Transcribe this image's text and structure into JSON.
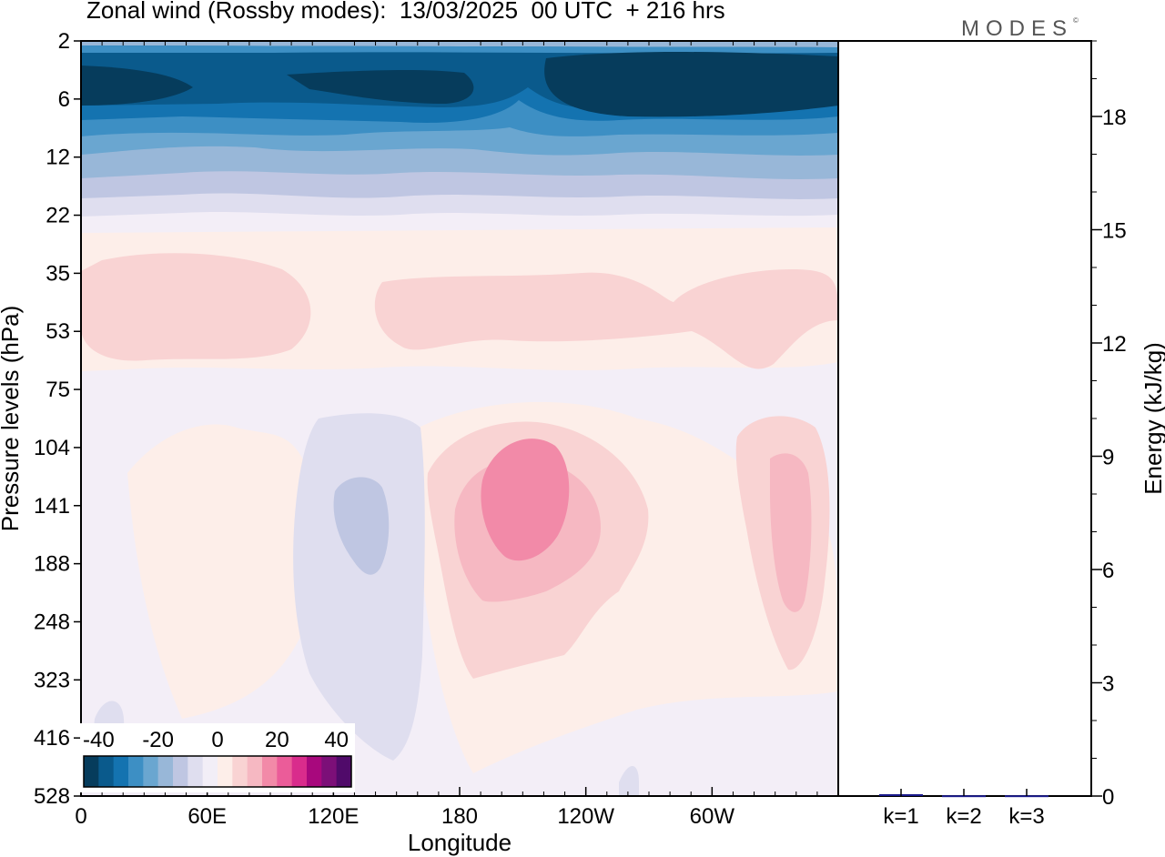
{
  "header": {
    "title": "Zonal wind (Rossby modes):  13/03/2025  00 UTC  + 216 hrs",
    "logo": "MODES",
    "logo_mark": "©"
  },
  "colors": {
    "frame": "#000000",
    "bar_fill": "#1a1a8c",
    "negative_ramp": [
      "#063c5c",
      "#0a5a8c",
      "#1473b0",
      "#3d8fc4",
      "#6aa6d0",
      "#98b7d8",
      "#bfc6e2",
      "#dfdeef",
      "#f2eef7"
    ],
    "positive_ramp": [
      "#fdeee9",
      "#f9d3d3",
      "#f6b8c2",
      "#f28aa8",
      "#eb5c99",
      "#d92c8c",
      "#a8087d",
      "#7c0f78",
      "#500a6a"
    ]
  },
  "chart_data": [
    {
      "type": "heatmap",
      "title": "Zonal wind (Rossby modes):  13/03/2025  00 UTC  + 216 hrs",
      "xlabel": "Longitude",
      "ylabel": "Pressure levels (hPa)",
      "x_ticks": [
        "0",
        "60E",
        "120E",
        "180",
        "120W",
        "60W"
      ],
      "x_tick_lon": [
        0,
        60,
        120,
        180,
        240,
        300
      ],
      "xlim": [
        0,
        360
      ],
      "y_ticks": [
        "2",
        "6",
        "12",
        "22",
        "35",
        "53",
        "75",
        "104",
        "141",
        "188",
        "248",
        "323",
        "416",
        "528"
      ],
      "y_axis": "model levels (uneven pressure spacing)",
      "colorbar": {
        "tick_labels": [
          "-40",
          "-20",
          "0",
          "20",
          "40"
        ],
        "min": -45,
        "max": 45,
        "step": 5
      },
      "features": [
        {
          "level_hPa": "2-10",
          "lon": "0-360",
          "value": -40
        },
        {
          "level_hPa": "10-22",
          "lon": "0-360",
          "value": -15
        },
        {
          "level_hPa": "30-60",
          "lon": "0-110",
          "value": 5
        },
        {
          "level_hPa": "30-60",
          "lon": "140-360",
          "value": 5
        },
        {
          "level_hPa": "100-200",
          "lon": "120-130",
          "value": -5
        },
        {
          "level_hPa": "100-250",
          "lon": "190-235",
          "value": 15
        },
        {
          "level_hPa": "100-250",
          "lon": "330-350",
          "value": 10
        }
      ]
    },
    {
      "type": "bar",
      "categories": [
        "k=1",
        "k=2",
        "k=3"
      ],
      "values": [
        0.05,
        0.02,
        0.02
      ],
      "ylabel": "Energy (kJ/kg)",
      "y_ticks": [
        "0",
        "3",
        "6",
        "9",
        "12",
        "15",
        "18"
      ],
      "ylim": [
        0,
        20
      ],
      "y_tick_side": "right"
    }
  ]
}
